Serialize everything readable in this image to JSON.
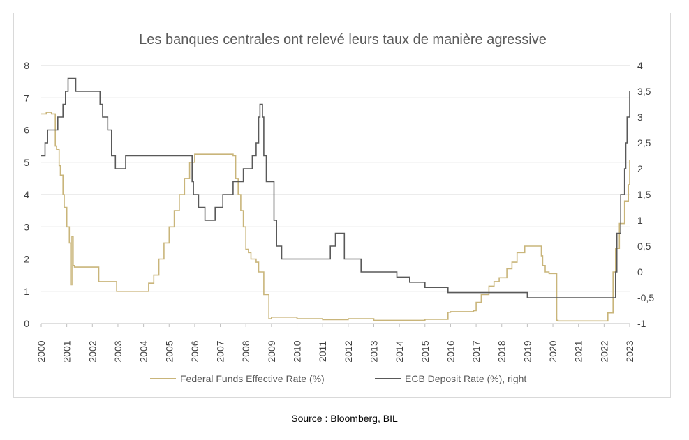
{
  "chart_data": {
    "type": "line",
    "title": "Les banques centrales ont relevé leurs taux de manière agressive",
    "x_ticks": [
      "2000",
      "2001",
      "2002",
      "2003",
      "2004",
      "2005",
      "2006",
      "2007",
      "2008",
      "2009",
      "2010",
      "2011",
      "2012",
      "2013",
      "2014",
      "2015",
      "2016",
      "2017",
      "2018",
      "2019",
      "2020",
      "2021",
      "2022",
      "2023"
    ],
    "xlim": [
      2000,
      2023
    ],
    "y_left": {
      "ticks": [
        "0",
        "1",
        "2",
        "3",
        "4",
        "5",
        "6",
        "7",
        "8"
      ],
      "ylim": [
        0,
        8
      ]
    },
    "y_right": {
      "ticks": [
        "-1",
        "-0,5",
        "0",
        "0,5",
        "1",
        "1,5",
        "2",
        "2,5",
        "3",
        "3,5",
        "4"
      ],
      "ylim": [
        -1,
        4
      ]
    },
    "legend_position": "bottom",
    "colors": {
      "fed": "#c9b57a",
      "ecb": "#595959"
    },
    "series": [
      {
        "name": "Federal Funds Effective Rate (%)",
        "axis": "left",
        "x": [
          2000.0,
          2000.2,
          2000.4,
          2000.45,
          2000.55,
          2000.6,
          2000.7,
          2000.75,
          2000.85,
          2000.9,
          2001.0,
          2001.1,
          2001.15,
          2001.2,
          2001.25,
          2001.3,
          2001.5,
          2002.0,
          2002.2,
          2002.25,
          2002.5,
          2002.9,
          2002.95,
          2003.2,
          2003.5,
          2003.9,
          2004.0,
          2004.2,
          2004.4,
          2004.6,
          2004.8,
          2005.0,
          2005.2,
          2005.4,
          2005.6,
          2005.8,
          2006.0,
          2006.2,
          2006.4,
          2006.5,
          2007.0,
          2007.5,
          2007.6,
          2007.7,
          2007.8,
          2007.9,
          2008.0,
          2008.1,
          2008.2,
          2008.3,
          2008.4,
          2008.5,
          2008.7,
          2008.9,
          2009.0,
          2010.0,
          2011.0,
          2012.0,
          2013.0,
          2014.0,
          2015.0,
          2015.9,
          2016.0,
          2016.9,
          2017.0,
          2017.2,
          2017.5,
          2017.7,
          2017.9,
          2018.2,
          2018.4,
          2018.6,
          2018.9,
          2019.0,
          2019.2,
          2019.55,
          2019.6,
          2019.7,
          2019.85,
          2020.0,
          2020.15,
          2020.2,
          2020.3,
          2021.0,
          2022.0,
          2022.15,
          2022.35,
          2022.45,
          2022.6,
          2022.8,
          2022.95,
          2023.0
        ],
        "values": [
          6.5,
          6.55,
          6.5,
          6.5,
          5.5,
          5.4,
          4.9,
          4.6,
          4.0,
          3.6,
          3.0,
          2.5,
          1.2,
          2.7,
          1.8,
          1.75,
          1.75,
          1.75,
          1.75,
          1.3,
          1.3,
          1.3,
          1.0,
          1.0,
          1.0,
          1.0,
          1.0,
          1.25,
          1.5,
          2.0,
          2.5,
          3.0,
          3.5,
          4.0,
          4.5,
          5.0,
          5.25,
          5.25,
          5.25,
          5.25,
          5.25,
          5.2,
          4.5,
          4.0,
          3.5,
          3.0,
          2.3,
          2.2,
          2.0,
          2.0,
          1.9,
          1.6,
          0.9,
          0.15,
          0.2,
          0.15,
          0.12,
          0.15,
          0.1,
          0.1,
          0.13,
          0.35,
          0.37,
          0.4,
          0.66,
          0.9,
          1.16,
          1.3,
          1.42,
          1.7,
          1.9,
          2.2,
          2.4,
          2.4,
          2.4,
          2.1,
          1.8,
          1.6,
          1.55,
          1.55,
          0.1,
          0.08,
          0.08,
          0.08,
          0.08,
          0.33,
          1.6,
          2.33,
          3.1,
          3.8,
          4.3,
          5.08
        ]
      },
      {
        "name": "ECB Deposit Rate (%), right",
        "axis": "right",
        "x": [
          2000.0,
          2000.1,
          2000.15,
          2000.25,
          2000.65,
          2000.85,
          2000.95,
          2001.05,
          2001.35,
          2002.3,
          2002.4,
          2002.6,
          2002.75,
          2002.9,
          2003.3,
          2005.9,
          2005.95,
          2006.15,
          2006.4,
          2006.6,
          2006.8,
          2007.1,
          2007.5,
          2007.9,
          2008.25,
          2008.4,
          2008.5,
          2008.55,
          2008.65,
          2008.7,
          2008.8,
          2009.1,
          2009.2,
          2009.4,
          2009.5,
          2011.0,
          2011.3,
          2011.5,
          2011.85,
          2012.5,
          2012.9,
          2013.0,
          2013.5,
          2013.9,
          2014.4,
          2014.7,
          2015.0,
          2015.9,
          2016.2,
          2016.5,
          2019.0,
          2019.7,
          2022.0,
          2022.45,
          2022.5,
          2022.65,
          2022.8,
          2022.85,
          2022.9,
          2023.0
        ],
        "values": [
          2.25,
          2.25,
          2.5,
          2.75,
          3.0,
          3.25,
          3.5,
          3.75,
          3.5,
          3.25,
          3.0,
          2.75,
          2.25,
          2.0,
          2.25,
          1.75,
          1.5,
          1.25,
          1.0,
          1.0,
          1.25,
          1.5,
          1.75,
          2.0,
          2.25,
          2.5,
          3.0,
          3.25,
          3.0,
          2.25,
          1.75,
          1.0,
          0.5,
          0.25,
          0.25,
          0.25,
          0.5,
          0.75,
          0.25,
          0.0,
          0.0,
          0.0,
          0.0,
          -0.1,
          -0.2,
          -0.2,
          -0.3,
          -0.4,
          -0.4,
          -0.4,
          -0.5,
          -0.5,
          -0.5,
          0.0,
          0.75,
          1.5,
          2.0,
          2.5,
          3.0,
          3.5
        ]
      }
    ]
  },
  "source": "Source : Bloomberg, BIL"
}
